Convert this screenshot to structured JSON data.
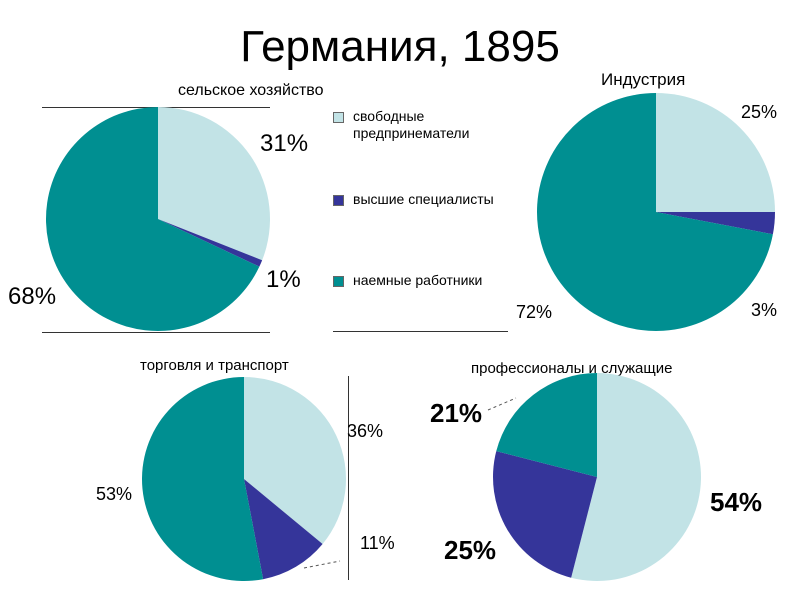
{
  "page_title": "Германия, 1895",
  "colors": {
    "свободные предпринематели": "#c2e3e6",
    "высшие специалисты": "#35359a",
    "наемные работники": "#008f91"
  },
  "legend": [
    {
      "label": "свободные предпринематели",
      "color": "#c2e3e6"
    },
    {
      "label": "высшие специалисты",
      "color": "#35359a"
    },
    {
      "label": "наемные работники",
      "color": "#008f91"
    }
  ],
  "chart_data": [
    {
      "type": "pie",
      "title": "сельское хозяйство",
      "categories": [
        "свободные предпринематели",
        "высшие специалисты",
        "наемные работники"
      ],
      "values": [
        31,
        1,
        68
      ],
      "labels": [
        "31%",
        "1%",
        "68%"
      ]
    },
    {
      "type": "pie",
      "title": "Индустрия",
      "categories": [
        "свободные предпринематели",
        "высшие специалисты",
        "наемные работники"
      ],
      "values": [
        25,
        3,
        72
      ],
      "labels": [
        "25%",
        "3%",
        "72%"
      ]
    },
    {
      "type": "pie",
      "title": "торговля и транспорт",
      "categories": [
        "свободные предпринематели",
        "высшие специалисты",
        "наемные работники"
      ],
      "values": [
        36,
        11,
        53
      ],
      "labels": [
        "36%",
        "11%",
        "53%"
      ]
    },
    {
      "type": "pie",
      "title": "профессионалы и служащие",
      "categories": [
        "свободные предпринематели",
        "высшие специалисты",
        "наемные работники"
      ],
      "values": [
        54,
        25,
        21
      ],
      "labels": [
        "54%",
        "25%",
        "21%"
      ]
    }
  ]
}
